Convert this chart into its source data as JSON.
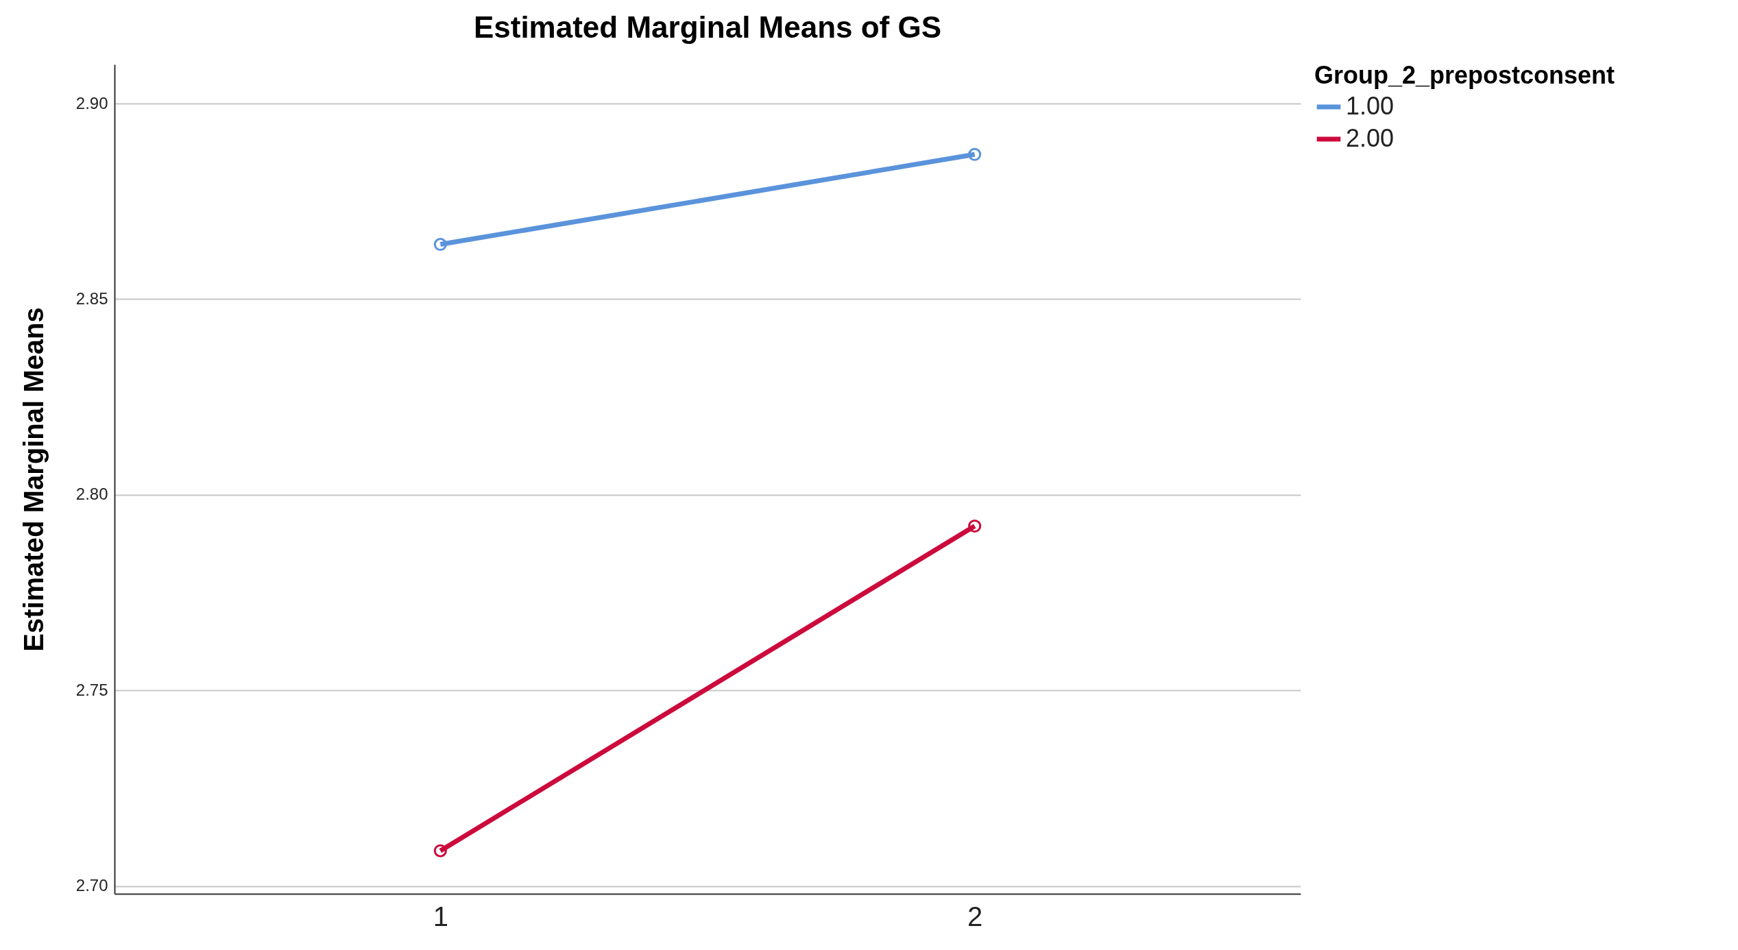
{
  "chart_data": {
    "type": "line",
    "title": "Estimated Marginal Means of GS",
    "ylabel": "Estimated Marginal Means",
    "legend_title": "Group_2_prepostconsent",
    "categories": [
      "1",
      "2"
    ],
    "series": [
      {
        "name": "1.00",
        "color": "#5a93db",
        "values": [
          2.864,
          2.887
        ]
      },
      {
        "name": "2.00",
        "color": "#cc0a3c",
        "values": [
          2.709,
          2.792
        ]
      }
    ],
    "ylim": [
      2.698,
      2.91
    ],
    "yticks": [
      {
        "value": 2.7,
        "label": "2.70"
      },
      {
        "value": 2.75,
        "label": "2.75"
      },
      {
        "value": 2.8,
        "label": "2.80"
      },
      {
        "value": 2.85,
        "label": "2.85"
      },
      {
        "value": 2.9,
        "label": "2.90"
      }
    ],
    "grid": "y",
    "legend": "top right",
    "marker": "circle",
    "line_style": "solid"
  }
}
